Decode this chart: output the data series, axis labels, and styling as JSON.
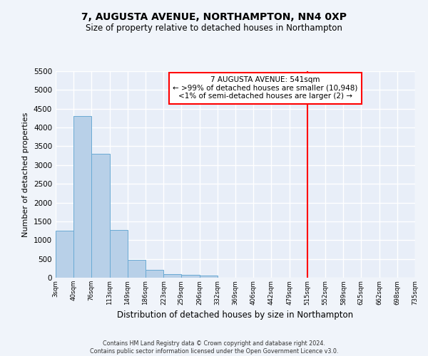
{
  "title1": "7, AUGUSTA AVENUE, NORTHAMPTON, NN4 0XP",
  "title2": "Size of property relative to detached houses in Northampton",
  "xlabel": "Distribution of detached houses by size in Northampton",
  "ylabel": "Number of detached properties",
  "bar_values": [
    1250,
    4300,
    3300,
    1280,
    480,
    200,
    90,
    80,
    55,
    0,
    0,
    0,
    0,
    0,
    0,
    0,
    0,
    0,
    0,
    0
  ],
  "bin_edges": [
    3,
    40,
    76,
    113,
    149,
    186,
    223,
    259,
    296,
    332,
    369,
    406,
    442,
    479,
    515,
    552,
    589,
    625,
    662,
    698,
    735
  ],
  "xtick_labels": [
    "3sqm",
    "40sqm",
    "76sqm",
    "113sqm",
    "149sqm",
    "186sqm",
    "223sqm",
    "259sqm",
    "296sqm",
    "332sqm",
    "369sqm",
    "406sqm",
    "442sqm",
    "479sqm",
    "515sqm",
    "552sqm",
    "589sqm",
    "625sqm",
    "662sqm",
    "698sqm",
    "735sqm"
  ],
  "ylim": [
    0,
    5500
  ],
  "yticks": [
    0,
    500,
    1000,
    1500,
    2000,
    2500,
    3000,
    3500,
    4000,
    4500,
    5000,
    5500
  ],
  "bar_color": "#b8d0e8",
  "bar_edge_color": "#6aaad4",
  "bg_color": "#e8eef8",
  "grid_color": "#ffffff",
  "red_line_x": 515,
  "annotation_title": "7 AUGUSTA AVENUE: 541sqm",
  "annotation_line1": "← >99% of detached houses are smaller (10,948)",
  "annotation_line2": "<1% of semi-detached houses are larger (2) →",
  "footer1": "Contains HM Land Registry data © Crown copyright and database right 2024.",
  "footer2": "Contains public sector information licensed under the Open Government Licence v3.0."
}
